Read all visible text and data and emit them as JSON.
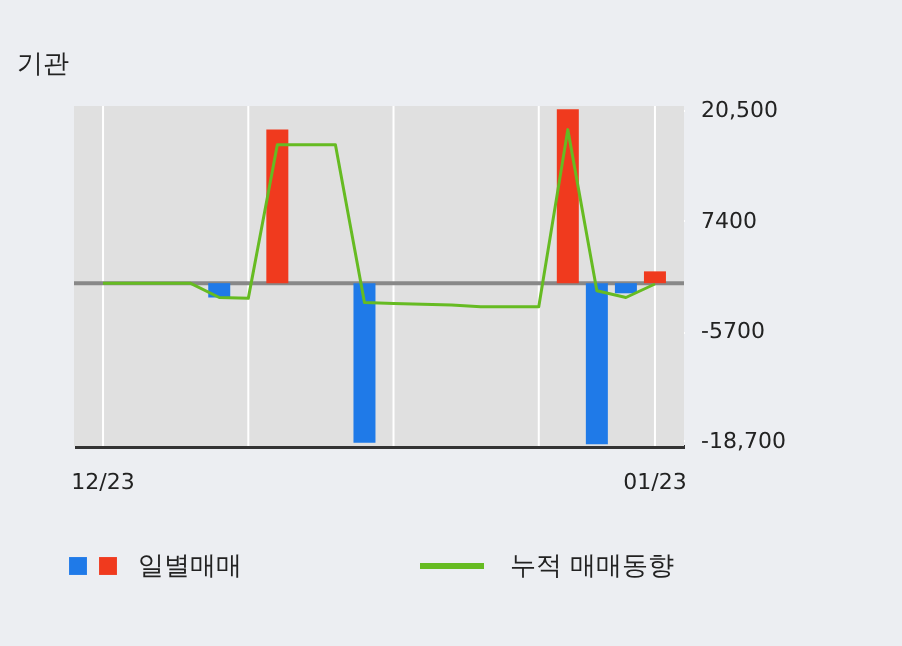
{
  "chart_data": {
    "type": "bar",
    "title": "기관",
    "categories": [
      "12/23",
      null,
      null,
      null,
      null,
      null,
      null,
      null,
      null,
      null,
      null,
      null,
      null,
      null,
      null,
      null,
      null,
      null,
      null,
      "01/23"
    ],
    "series": [
      {
        "name": "일별매매",
        "colors": [
          null,
          null,
          null,
          null,
          "#1f7ae8",
          null,
          "#f03a1e",
          null,
          null,
          "#1f7ae8",
          null,
          null,
          null,
          null,
          null,
          null,
          "#f03a1e",
          "#1f7ae8",
          "#1f7ae8",
          "#f03a1e"
        ],
        "values": [
          null,
          null,
          null,
          null,
          -1700,
          null,
          18200,
          null,
          null,
          -18900,
          null,
          null,
          null,
          null,
          null,
          null,
          20600,
          -19100,
          -1200,
          1400
        ]
      },
      {
        "name": "누적 매매동향",
        "type": "line",
        "color": "#66bb22",
        "values": [
          0,
          0,
          0,
          0,
          -1700,
          -1800,
          16400,
          16400,
          16400,
          -2300,
          -2400,
          -2500,
          -2600,
          -2800,
          -2800,
          -2800,
          18200,
          -900,
          -1700,
          -100
        ]
      }
    ],
    "ylim": [
      -19300,
      21000
    ],
    "yticks": [
      {
        "value": 20500,
        "label": "20,500"
      },
      7400,
      -5700,
      {
        "value": -18700,
        "label": "-18,700"
      }
    ],
    "ref_lines": [
      {
        "axis": "y",
        "value": 0,
        "color": "#888888"
      }
    ],
    "grid": true,
    "legend": "bottom"
  }
}
